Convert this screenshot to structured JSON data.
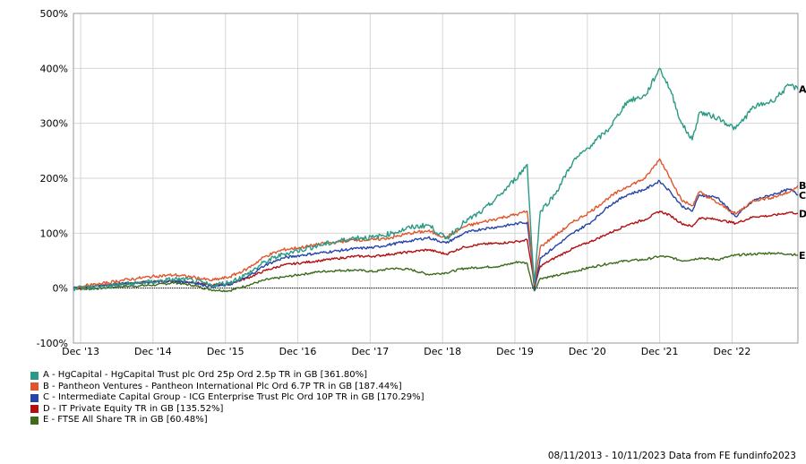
{
  "chart_data": {
    "type": "line",
    "y_ticks": [
      "500%",
      "400%",
      "300%",
      "200%",
      "100%",
      "0%",
      "-100%"
    ],
    "ylim": [
      -100,
      500
    ],
    "x_ticks": [
      "Dec '13",
      "Dec '14",
      "Dec '15",
      "Dec '16",
      "Dec '17",
      "Dec '18",
      "Dec '19",
      "Dec '20",
      "Dec '21",
      "Dec '22"
    ],
    "x_range": [
      2013.85,
      2023.86
    ],
    "x_tick_years": [
      2013.95,
      2014.95,
      2015.95,
      2016.95,
      2017.95,
      2018.95,
      2019.95,
      2020.95,
      2021.95,
      2022.95
    ],
    "grid": true,
    "legend_placement": "bottom-left",
    "series": [
      {
        "letter": "A",
        "name": "A - HgCapital - HgCapital Trust plc Ord 25p Ord 2.5p TR in GB [361.80%]",
        "color": "#2a9a85",
        "x": [
          2013.85,
          2014.0,
          2014.25,
          2014.5,
          2014.75,
          2015.0,
          2015.25,
          2015.5,
          2015.75,
          2016.0,
          2016.25,
          2016.5,
          2016.75,
          2017.0,
          2017.25,
          2017.5,
          2017.75,
          2018.0,
          2018.25,
          2018.5,
          2018.75,
          2019.0,
          2019.25,
          2019.5,
          2019.75,
          2020.0,
          2020.12,
          2020.18,
          2020.22,
          2020.3,
          2020.5,
          2020.75,
          2021.0,
          2021.25,
          2021.5,
          2021.75,
          2021.95,
          2022.1,
          2022.25,
          2022.4,
          2022.5,
          2022.75,
          2023.0,
          2023.25,
          2023.5,
          2023.75,
          2023.86
        ],
        "y": [
          0,
          1,
          3,
          6,
          9,
          12,
          16,
          14,
          5,
          10,
          25,
          48,
          62,
          70,
          78,
          85,
          92,
          92,
          100,
          110,
          115,
          90,
          120,
          140,
          170,
          205,
          225,
          80,
          10,
          140,
          170,
          230,
          260,
          290,
          340,
          350,
          400,
          360,
          300,
          270,
          320,
          310,
          290,
          330,
          340,
          370,
          362
        ]
      },
      {
        "letter": "B",
        "name": "B - Pantheon Ventures - Pantheon International Plc Ord 6.7P TR in GB [187.44%]",
        "color": "#e0552b",
        "x": [
          2013.85,
          2014.0,
          2014.25,
          2014.5,
          2014.75,
          2015.0,
          2015.25,
          2015.5,
          2015.75,
          2016.0,
          2016.25,
          2016.5,
          2016.75,
          2017.0,
          2017.25,
          2017.5,
          2017.75,
          2018.0,
          2018.25,
          2018.5,
          2018.75,
          2019.0,
          2019.25,
          2019.5,
          2019.75,
          2020.0,
          2020.12,
          2020.18,
          2020.22,
          2020.3,
          2020.5,
          2020.75,
          2021.0,
          2021.25,
          2021.5,
          2021.75,
          2021.95,
          2022.1,
          2022.25,
          2022.4,
          2022.5,
          2022.75,
          2023.0,
          2023.25,
          2023.5,
          2023.75,
          2023.86
        ],
        "y": [
          0,
          4,
          8,
          14,
          18,
          22,
          24,
          20,
          14,
          20,
          35,
          58,
          70,
          74,
          80,
          84,
          88,
          88,
          92,
          100,
          104,
          92,
          112,
          120,
          128,
          135,
          140,
          60,
          5,
          75,
          95,
          120,
          140,
          165,
          185,
          200,
          235,
          200,
          160,
          150,
          175,
          155,
          135,
          160,
          165,
          175,
          187
        ]
      },
      {
        "letter": "C",
        "name": "C - Intermediate Capital Group - ICG Enterprise Trust Plc Ord 10P TR in GB [170.29%]",
        "color": "#2545a8",
        "x": [
          2013.85,
          2014.0,
          2014.25,
          2014.5,
          2014.75,
          2015.0,
          2015.25,
          2015.5,
          2015.75,
          2016.0,
          2016.25,
          2016.5,
          2016.75,
          2017.0,
          2017.25,
          2017.5,
          2017.75,
          2018.0,
          2018.25,
          2018.5,
          2018.75,
          2019.0,
          2019.25,
          2019.5,
          2019.75,
          2020.0,
          2020.12,
          2020.18,
          2020.22,
          2020.3,
          2020.5,
          2020.75,
          2021.0,
          2021.25,
          2021.5,
          2021.75,
          2021.95,
          2022.1,
          2022.25,
          2022.4,
          2022.5,
          2022.75,
          2023.0,
          2023.25,
          2023.5,
          2023.75,
          2023.86
        ],
        "y": [
          0,
          2,
          5,
          8,
          10,
          12,
          13,
          10,
          3,
          6,
          20,
          42,
          55,
          60,
          64,
          68,
          72,
          74,
          80,
          86,
          92,
          82,
          100,
          108,
          112,
          118,
          120,
          55,
          -2,
          55,
          75,
          100,
          120,
          150,
          170,
          180,
          195,
          175,
          150,
          140,
          170,
          165,
          130,
          160,
          170,
          180,
          170
        ]
      },
      {
        "letter": "D",
        "name": "D - IT Private Equity TR in GB [135.52%]",
        "color": "#b2100f",
        "x": [
          2013.85,
          2014.0,
          2014.25,
          2014.5,
          2014.75,
          2015.0,
          2015.25,
          2015.5,
          2015.75,
          2016.0,
          2016.25,
          2016.5,
          2016.75,
          2017.0,
          2017.25,
          2017.5,
          2017.75,
          2018.0,
          2018.25,
          2018.5,
          2018.75,
          2019.0,
          2019.25,
          2019.5,
          2019.75,
          2020.0,
          2020.12,
          2020.18,
          2020.22,
          2020.3,
          2020.5,
          2020.75,
          2021.0,
          2021.25,
          2021.5,
          2021.75,
          2021.95,
          2022.1,
          2022.25,
          2022.4,
          2022.5,
          2022.75,
          2023.0,
          2023.25,
          2023.5,
          2023.75,
          2023.86
        ],
        "y": [
          0,
          2,
          4,
          7,
          10,
          12,
          13,
          11,
          5,
          8,
          18,
          32,
          42,
          46,
          50,
          54,
          58,
          58,
          62,
          66,
          70,
          62,
          75,
          80,
          82,
          85,
          88,
          40,
          2,
          40,
          55,
          72,
          85,
          100,
          115,
          125,
          140,
          132,
          118,
          112,
          128,
          125,
          118,
          130,
          132,
          138,
          136
        ]
      },
      {
        "letter": "E",
        "name": "E - FTSE All Share TR in GB [60.48%]",
        "color": "#3d6b1a",
        "x": [
          2013.85,
          2014.0,
          2014.25,
          2014.5,
          2014.75,
          2015.0,
          2015.25,
          2015.5,
          2015.75,
          2016.0,
          2016.25,
          2016.5,
          2016.75,
          2017.0,
          2017.25,
          2017.5,
          2017.75,
          2018.0,
          2018.25,
          2018.5,
          2018.75,
          2019.0,
          2019.25,
          2019.5,
          2019.75,
          2020.0,
          2020.12,
          2020.18,
          2020.22,
          2020.3,
          2020.5,
          2020.75,
          2021.0,
          2021.25,
          2021.5,
          2021.75,
          2021.95,
          2022.1,
          2022.25,
          2022.4,
          2022.5,
          2022.75,
          2023.0,
          2023.25,
          2023.5,
          2023.75,
          2023.86
        ],
        "y": [
          0,
          -2,
          0,
          3,
          4,
          6,
          10,
          5,
          -3,
          -5,
          5,
          15,
          20,
          25,
          30,
          32,
          33,
          30,
          36,
          34,
          25,
          28,
          36,
          38,
          40,
          48,
          45,
          10,
          -5,
          18,
          22,
          30,
          38,
          45,
          50,
          52,
          58,
          56,
          50,
          52,
          55,
          52,
          60,
          62,
          64,
          62,
          60
        ]
      }
    ]
  },
  "legend_items": [
    {
      "label": "A - HgCapital - HgCapital Trust plc Ord 25p Ord 2.5p TR in GB [361.80%]",
      "color": "#2a9a85"
    },
    {
      "label": "B - Pantheon Ventures - Pantheon International Plc Ord 6.7P TR in GB [187.44%]",
      "color": "#e0552b"
    },
    {
      "label": "C - Intermediate Capital Group - ICG Enterprise Trust Plc Ord 10P TR in GB [170.29%]",
      "color": "#2545a8"
    },
    {
      "label": "D - IT Private Equity TR in GB [135.52%]",
      "color": "#b2100f"
    },
    {
      "label": "E - FTSE All Share TR in GB [60.48%]",
      "color": "#3d6b1a"
    }
  ],
  "footer": "08/11/2013 - 10/11/2023 Data from FE fundinfo2023"
}
